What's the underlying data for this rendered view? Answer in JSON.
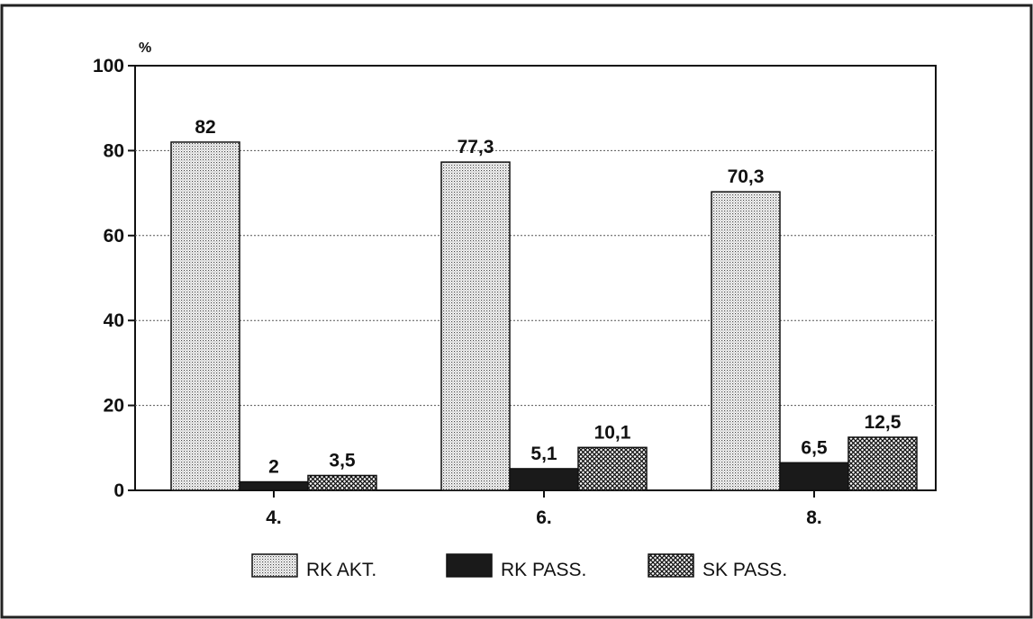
{
  "chart_data": {
    "type": "bar",
    "title": "",
    "xlabel": "",
    "ylabel": "%",
    "ylim": [
      0,
      100
    ],
    "yticks": [
      0,
      20,
      40,
      60,
      80,
      100
    ],
    "grid": true,
    "legend_position": "bottom",
    "categories": [
      "4.",
      "6.",
      "8."
    ],
    "series": [
      {
        "name": "RK AKT.",
        "values": [
          82,
          77.3,
          70.3
        ],
        "labels": [
          "82",
          "77,3",
          "70,3"
        ],
        "pattern": "fine-dots"
      },
      {
        "name": "RK PASS.",
        "values": [
          2,
          5.1,
          6.5
        ],
        "labels": [
          "2",
          "5,1",
          "6,5"
        ],
        "pattern": "solid-dark"
      },
      {
        "name": "SK PASS.",
        "values": [
          3.5,
          10.1,
          12.5
        ],
        "labels": [
          "3,5",
          "10,1",
          "12,5"
        ],
        "pattern": "crosshatch"
      }
    ],
    "colors": {
      "ink": "#111111",
      "dots_bg": "#ffffff",
      "solid": "#1a1a1a",
      "hatch_bg": "#ffffff"
    }
  }
}
